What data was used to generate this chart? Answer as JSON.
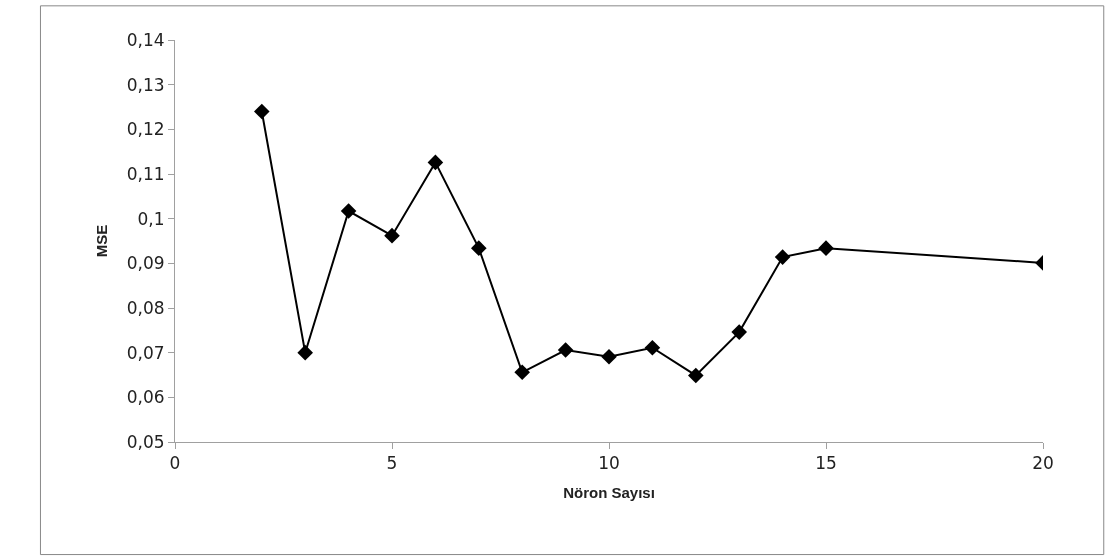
{
  "chart_data": {
    "type": "line",
    "xlabel": "Nöron Sayısı",
    "ylabel": "MSE",
    "x": [
      2,
      3,
      4,
      5,
      6,
      7,
      8,
      9,
      10,
      11,
      12,
      13,
      14,
      15,
      20
    ],
    "series": [
      {
        "color": "#000000",
        "values": [
          0.124,
          0.07,
          0.1017,
          0.0962,
          0.1126,
          0.0934,
          0.0656,
          0.0706,
          0.0691,
          0.0711,
          0.0649,
          0.0746,
          0.0914,
          0.0934,
          0.0901
        ]
      }
    ],
    "xlim": [
      0,
      20
    ],
    "xticks": [
      0,
      5,
      10,
      15,
      20
    ],
    "ylim": [
      0.05,
      0.14
    ],
    "yticks": [
      {
        "value": 0.05,
        "label": "0,05"
      },
      {
        "value": 0.06,
        "label": "0,06"
      },
      {
        "value": 0.07,
        "label": "0,07"
      },
      {
        "value": 0.08,
        "label": "0,08"
      },
      {
        "value": 0.09,
        "label": "0,09"
      },
      {
        "value": 0.1,
        "label": "0,1"
      },
      {
        "value": 0.11,
        "label": "0,11"
      },
      {
        "value": 0.12,
        "label": "0,12"
      },
      {
        "value": 0.13,
        "label": "0,13"
      },
      {
        "value": 0.14,
        "label": "0,14"
      }
    ],
    "marker": "diamond",
    "line_style": "solid"
  }
}
